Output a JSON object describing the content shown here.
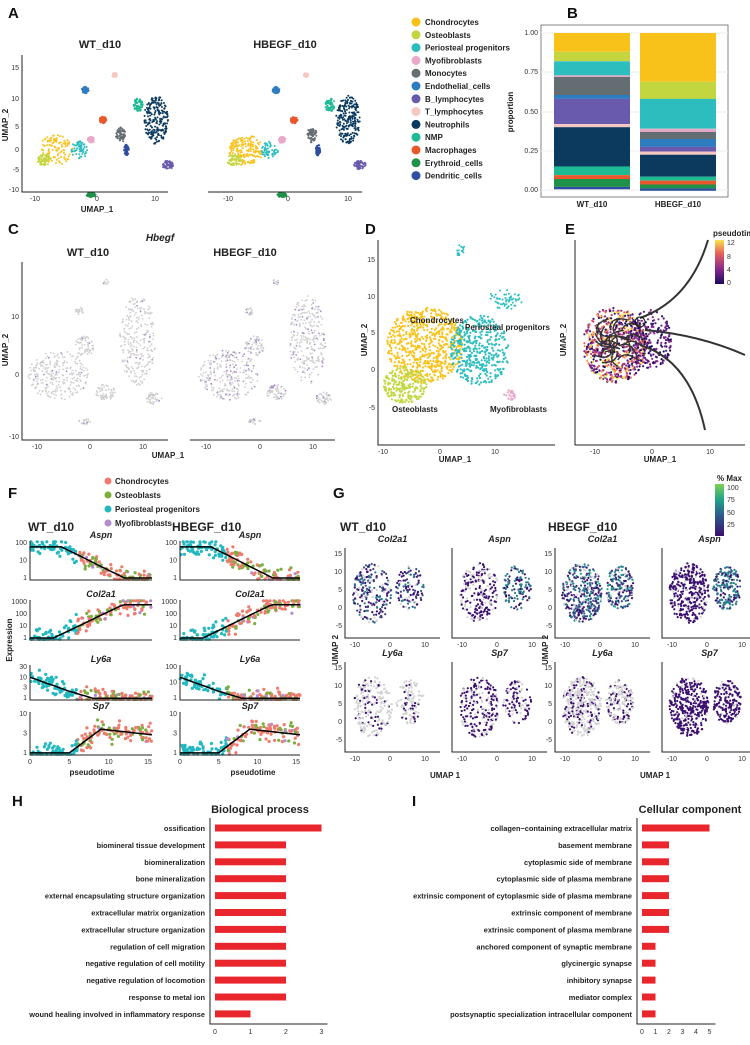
{
  "panel_labels": {
    "a": "A",
    "b": "B",
    "c": "C",
    "d": "D",
    "e": "E",
    "f": "F",
    "g": "G",
    "h": "H",
    "i": "I"
  },
  "panel_a": {
    "titles": [
      "WT_d10",
      "HBEGF_d10"
    ],
    "xlabel": "UMAP_1",
    "ylabel": "UMAP_2",
    "xticks": [
      "-10",
      "0",
      "10"
    ],
    "yticks": [
      "15",
      "10",
      "5",
      "0",
      "-5",
      "-10"
    ],
    "legend": [
      {
        "name": "Chondrocytes",
        "color": "#F9C21A"
      },
      {
        "name": "Osteoblasts",
        "color": "#C3D640"
      },
      {
        "name": "Periosteal progenitors",
        "color": "#2EBDBE"
      },
      {
        "name": "Myofibroblasts",
        "color": "#E8A8C8"
      },
      {
        "name": "Monocytes",
        "color": "#636D72"
      },
      {
        "name": "Endothelial_cells",
        "color": "#2E7CC0"
      },
      {
        "name": "B_lymphocytes",
        "color": "#6A5AAE"
      },
      {
        "name": "T_lymphocytes",
        "color": "#F6C7C0"
      },
      {
        "name": "Neutrophils",
        "color": "#0B3A5E"
      },
      {
        "name": "NMP",
        "color": "#1EBA94"
      },
      {
        "name": "Macrophages",
        "color": "#E9582C"
      },
      {
        "name": "Erythroid_cells",
        "color": "#1E9248"
      },
      {
        "name": "Dendritic_cells",
        "color": "#2E4E9E"
      }
    ]
  },
  "panel_c": {
    "gene": "Hbegf",
    "titles": [
      "WT_d10",
      "HBEGF_d10"
    ],
    "xlabel": "UMAP_1",
    "ylabel": "UMAP_2",
    "xticks": [
      "-10",
      "0",
      "10"
    ],
    "yticks": [
      "10",
      "0",
      "-10"
    ]
  },
  "panel_d": {
    "xlabel": "UMAP_1",
    "ylabel": "UMAP_2",
    "xticks": [
      "-10",
      "0",
      "10"
    ],
    "yticks": [
      "15",
      "10",
      "5",
      "0",
      "-5"
    ],
    "cluster_labels": [
      "Chondrocytes",
      "Periosteal progenitors",
      "Osteoblasts",
      "Myofibroblasts"
    ]
  },
  "panel_e": {
    "xlabel": "UMAP_1",
    "ylabel": "UMAP_2",
    "xticks": [
      "-10",
      "0",
      "10"
    ],
    "colorbar_title": "pseudotime",
    "colorbar_ticks": [
      "12",
      "8",
      "4",
      "0"
    ],
    "root_marker": "1"
  },
  "panel_f": {
    "legend": [
      {
        "name": "Chondrocytes",
        "color": "#EE7B6E"
      },
      {
        "name": "Osteoblasts",
        "color": "#7CAE3E"
      },
      {
        "name": "Periosteal progenitors",
        "color": "#22B8C0"
      },
      {
        "name": "Myofibroblasts",
        "color": "#B38CD0"
      }
    ],
    "titles": [
      "WT_d10",
      "HBEGF_d10"
    ],
    "ylabel": "Expression",
    "xlabel": "pseudotime",
    "xticks": [
      "0",
      "5",
      "10",
      "15"
    ],
    "genes": [
      {
        "name": "Aspn",
        "yticks_wt": [
          "100",
          "10",
          "1"
        ],
        "yticks_hb": [
          "100",
          "10",
          "1"
        ]
      },
      {
        "name": "Col2a1",
        "yticks_wt": [
          "1000",
          "100",
          "10",
          "1"
        ],
        "yticks_hb": [
          "1000",
          "100",
          "10",
          "1"
        ]
      },
      {
        "name": "Ly6a",
        "yticks_wt": [
          "30",
          "10",
          "3",
          "1"
        ],
        "yticks_hb": [
          "100",
          "10",
          "1"
        ]
      },
      {
        "name": "Sp7",
        "yticks_wt": [
          "10",
          "3",
          "1"
        ],
        "yticks_hb": [
          "10",
          "3",
          "1"
        ]
      }
    ]
  },
  "panel_g": {
    "titles": [
      "WT_d10",
      "HBEGF_d10"
    ],
    "genes": [
      "Col2a1",
      "Aspn",
      "Ly6a",
      "Sp7"
    ],
    "xlabel": "UMAP 1",
    "ylabel": "UMAP 2",
    "xticks": [
      "-10",
      "0",
      "10"
    ],
    "yticks": [
      "15",
      "10",
      "5",
      "0",
      "-5"
    ],
    "colorbar_title": "% Max",
    "colorbar_ticks": [
      "100",
      "75",
      "50",
      "25"
    ]
  },
  "chart_data": [
    {
      "type": "bar",
      "stacked": true,
      "panel": "B",
      "ylabel": "proportion",
      "ylim": [
        0,
        1
      ],
      "yticks": [
        "1.00",
        "0.75",
        "0.50",
        "0.25",
        "0.00"
      ],
      "categories": [
        "WT_d10",
        "HBEGF_d10"
      ],
      "grid": true,
      "series": [
        {
          "name": "Chondrocytes",
          "values": [
            0.12,
            0.31
          ]
        },
        {
          "name": "Osteoblasts",
          "values": [
            0.06,
            0.11
          ]
        },
        {
          "name": "Periosteal progenitors",
          "values": [
            0.09,
            0.19
          ]
        },
        {
          "name": "Myofibroblasts",
          "values": [
            0.01,
            0.02
          ]
        },
        {
          "name": "Monocytes",
          "values": [
            0.115,
            0.045
          ]
        },
        {
          "name": "Endothelial_cells",
          "values": [
            0.025,
            0.05
          ]
        },
        {
          "name": "B_lymphocytes",
          "values": [
            0.16,
            0.03
          ]
        },
        {
          "name": "T_lymphocytes",
          "values": [
            0.02,
            0.02
          ]
        },
        {
          "name": "Neutrophils",
          "values": [
            0.25,
            0.14
          ]
        },
        {
          "name": "NMP",
          "values": [
            0.055,
            0.025
          ]
        },
        {
          "name": "Macrophages",
          "values": [
            0.025,
            0.025
          ]
        },
        {
          "name": "Erythroid_cells",
          "values": [
            0.05,
            0.025
          ]
        },
        {
          "name": "Dendritic_cells",
          "values": [
            0.015,
            0.015
          ]
        }
      ]
    },
    {
      "type": "bar",
      "orientation": "horizontal",
      "panel": "H",
      "title": "Biological process",
      "xlim": [
        0,
        3
      ],
      "xticks": [
        "0",
        "1",
        "2",
        "3"
      ],
      "color": "#E8262B",
      "categories": [
        "ossification",
        "biomineral tissue development",
        "biomineralization",
        "bone mineralization",
        "external encapsulating structure organization",
        "extracellular matrix organization",
        "extracellular structure organization",
        "regulation of cell migration",
        "negative regulation of cell motility",
        "negative regulation of locomotion",
        "response to metal ion",
        "wound healing involved in inflammatory response"
      ],
      "values": [
        3,
        2,
        2,
        2,
        2,
        2,
        2,
        2,
        2,
        2,
        2,
        1
      ]
    },
    {
      "type": "bar",
      "orientation": "horizontal",
      "panel": "I",
      "title": "Cellular component",
      "xlim": [
        0,
        5
      ],
      "xticks": [
        "0",
        "1",
        "2",
        "3",
        "4",
        "5"
      ],
      "color": "#E8262B",
      "categories": [
        "collagen−containing extracellular matrix",
        "basement membrane",
        "cytoplasmic side of membrane",
        "cytoplasmic side of plasma membrane",
        "extrinsic component of cytoplasmic side of plasma membrane",
        "extrinsic component of membrane",
        "extrinsic component of plasma membrane",
        "anchored component of synaptic membrane",
        "glycinergic synapse",
        "inhibitory synapse",
        "mediator complex",
        "postsynaptic specialization intracellular component"
      ],
      "values": [
        5,
        2,
        2,
        2,
        2,
        2,
        2,
        1,
        1,
        1,
        1,
        1
      ]
    }
  ]
}
